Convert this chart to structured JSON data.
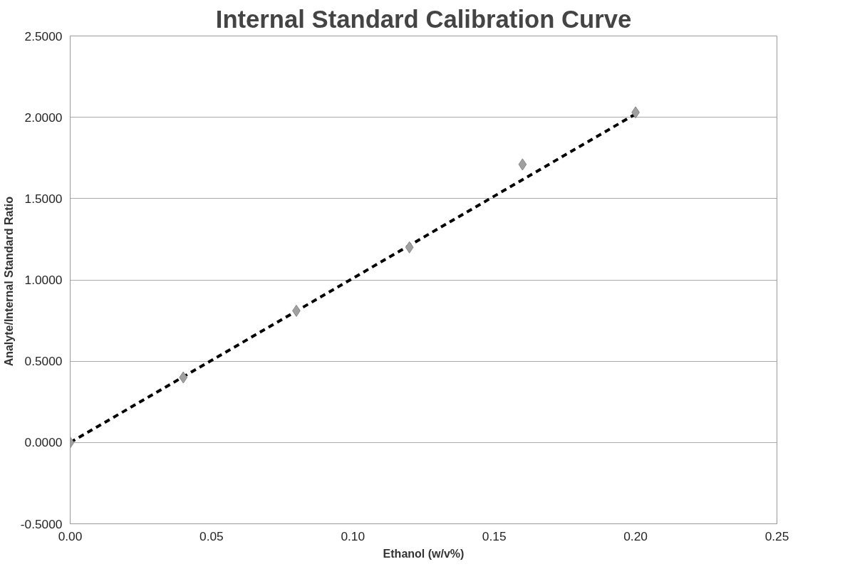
{
  "chart_data": {
    "type": "scatter",
    "title": "Internal Standard Calibration Curve",
    "xlabel": "Ethanol (w/v%)",
    "ylabel": "Analyte/Internal Standard  Ratio",
    "x": [
      0,
      0.04,
      0.08,
      0.12,
      0.16,
      0.2
    ],
    "series": [
      {
        "color": "#a0a0a0",
        "values": [
          0,
          0.4,
          0.81,
          1.2,
          1.71,
          2.03
        ],
        "marker": "diamond"
      },
      {
        "type": "line",
        "color": "#000000",
        "x": [
          0,
          0.2
        ],
        "values": [
          0,
          2.02
        ],
        "line_style": "dashed",
        "marker": "none"
      }
    ],
    "xlim": [
      0,
      0.25
    ],
    "xticks": [
      {
        "value": 0,
        "label": "0.00"
      },
      0.05,
      {
        "value": 0.1,
        "label": "0.10"
      },
      0.15,
      {
        "value": 0.2,
        "label": "0.20"
      },
      0.25
    ],
    "ylim": [
      -0.5,
      2.5
    ],
    "yticks": [
      {
        "value": -0.5,
        "label": "-0.5000"
      },
      {
        "value": 0,
        "label": "0.0000"
      },
      {
        "value": 0.5,
        "label": "0.5000"
      },
      {
        "value": 1,
        "label": "1.0000"
      },
      {
        "value": 1.5,
        "label": "1.5000"
      },
      {
        "value": 2,
        "label": "2.0000"
      },
      {
        "value": 2.5,
        "label": "2.5000"
      }
    ],
    "grid": "y"
  }
}
